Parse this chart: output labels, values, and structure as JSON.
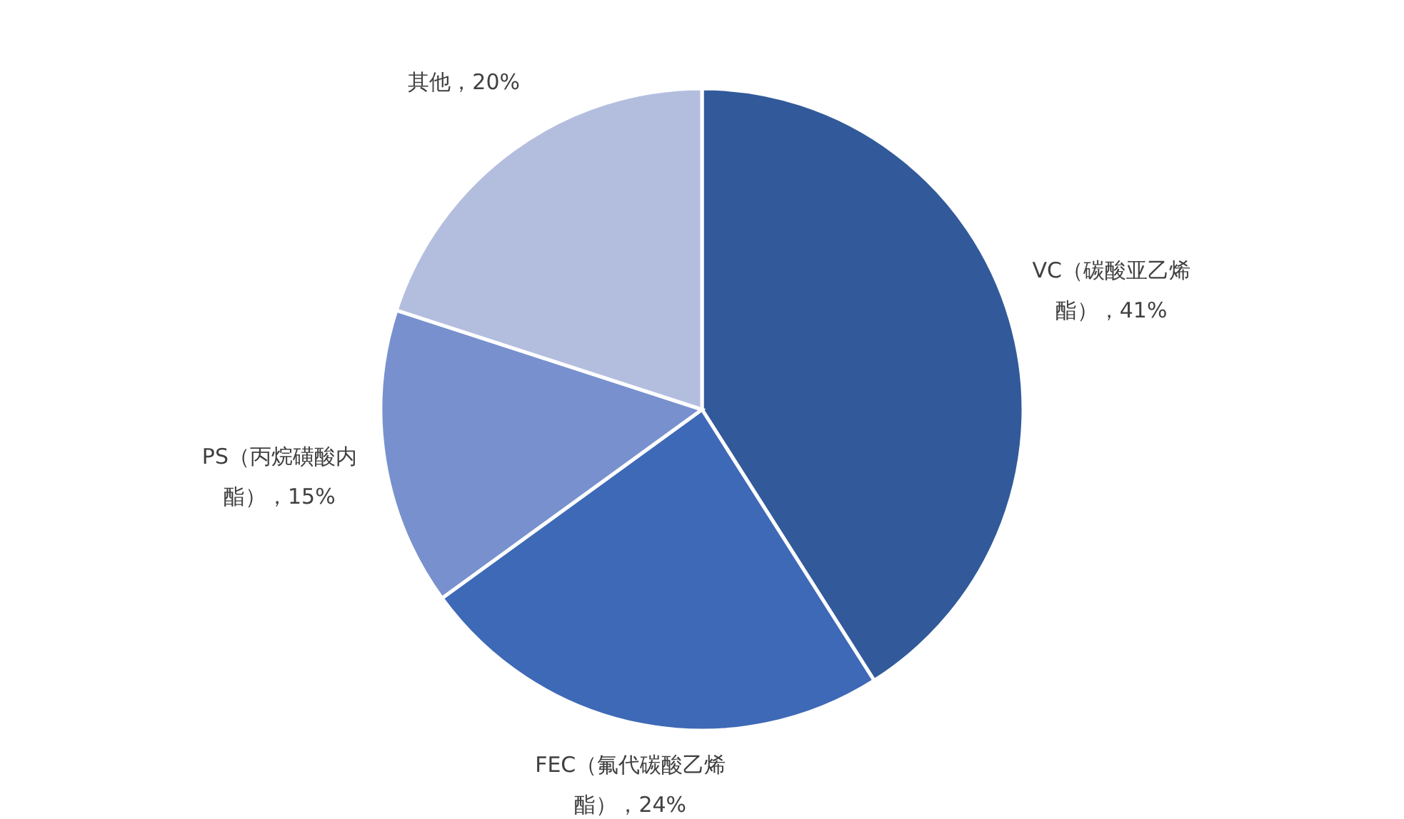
{
  "chart_data": {
    "type": "pie",
    "categories": [
      "VC（碳酸亚乙烯酯）",
      "FEC（氟代碳酸乙烯酯）",
      "PS（丙烷磺酸内酯）",
      "其他"
    ],
    "values": [
      41,
      24,
      15,
      20
    ],
    "colors": [
      "#325a9a",
      "#3e69b6",
      "#7891ce",
      "#b3bedf"
    ],
    "value_labels": [
      "41%",
      "24%",
      "15%",
      "20%"
    ]
  }
}
